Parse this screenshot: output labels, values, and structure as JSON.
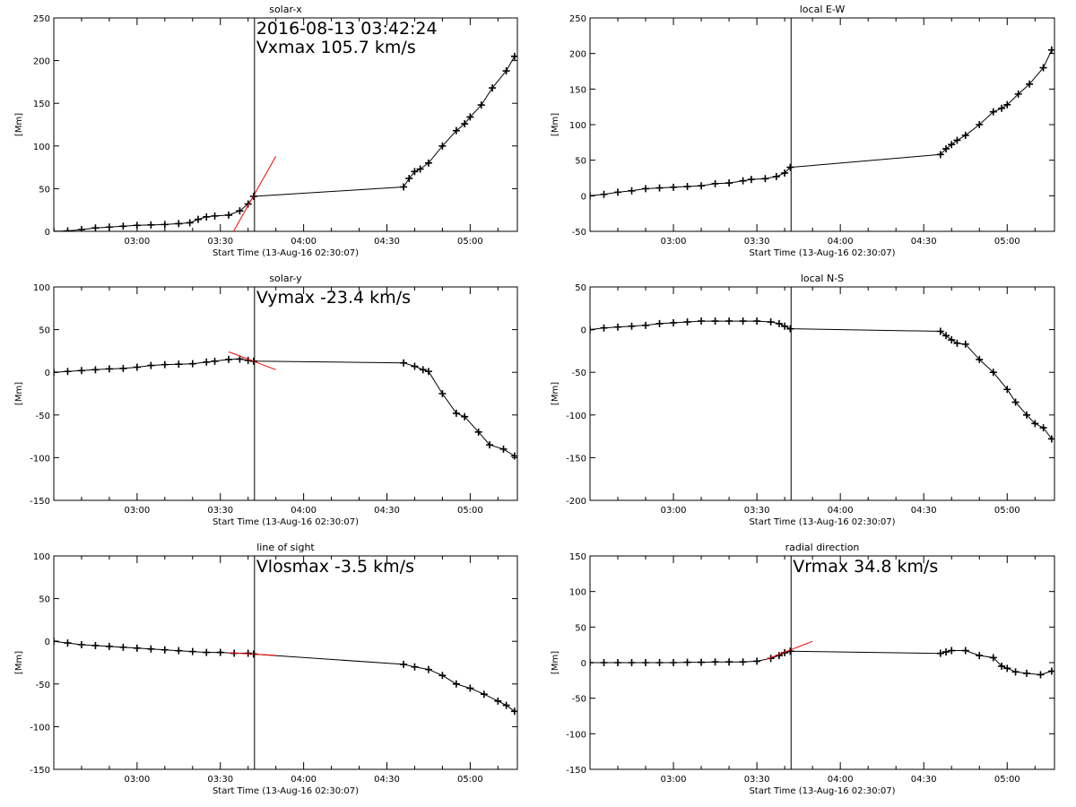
{
  "chart_data": [
    {
      "type": "scatter",
      "title": "solar-x",
      "xlabel": "Start Time (13-Aug-16 02:30:07)",
      "ylabel": "[Mm]",
      "xlim": [
        0,
        167
      ],
      "ylim": [
        0,
        250
      ],
      "yticks": [
        0,
        50,
        100,
        150,
        200,
        250
      ],
      "xticks": [
        {
          "v": 30,
          "label": "03:00"
        },
        {
          "v": 60,
          "label": "03:30"
        },
        {
          "v": 90,
          "label": "04:00"
        },
        {
          "v": 120,
          "label": "04:30"
        },
        {
          "v": 150,
          "label": "05:00"
        }
      ],
      "vline": 72.3,
      "annotation": [
        "2016-08-13 03:42:24",
        "Vxmax  105.7 km/s"
      ],
      "fit": {
        "x": [
          63,
          80
        ],
        "y": [
          -10,
          88
        ]
      },
      "series": [
        {
          "points": [
            [
              0,
              0
            ],
            [
              5,
              0.5
            ],
            [
              10,
              2
            ],
            [
              15,
              4
            ],
            [
              20,
              5
            ],
            [
              25,
              6
            ],
            [
              30,
              7
            ],
            [
              35,
              7.5
            ],
            [
              40,
              8
            ],
            [
              45,
              9
            ],
            [
              49,
              10
            ],
            [
              52,
              14
            ],
            [
              55,
              17
            ],
            [
              58,
              18
            ],
            [
              63,
              19
            ],
            [
              67,
              24
            ],
            [
              70,
              32
            ],
            [
              72,
              41
            ],
            [
              126,
              52
            ],
            [
              128,
              62
            ],
            [
              130,
              70
            ],
            [
              132,
              73
            ],
            [
              135,
              80
            ],
            [
              140,
              100
            ],
            [
              145,
              118
            ],
            [
              148,
              126
            ],
            [
              150,
              134
            ],
            [
              154,
              148
            ],
            [
              158,
              168
            ],
            [
              163,
              188
            ],
            [
              166,
              205
            ]
          ]
        }
      ]
    },
    {
      "type": "scatter",
      "title": "local E-W",
      "xlabel": "Start Time (13-Aug-16 02:30:07)",
      "ylabel": "[Mm]",
      "xlim": [
        0,
        167
      ],
      "ylim": [
        -50,
        250
      ],
      "yticks": [
        -50,
        0,
        50,
        100,
        150,
        200,
        250
      ],
      "xticks": [
        {
          "v": 30,
          "label": "03:00"
        },
        {
          "v": 60,
          "label": "03:30"
        },
        {
          "v": 90,
          "label": "04:00"
        },
        {
          "v": 120,
          "label": "04:30"
        },
        {
          "v": 150,
          "label": "05:00"
        }
      ],
      "vline": 72.3,
      "annotation": [],
      "series": [
        {
          "points": [
            [
              0,
              0
            ],
            [
              5,
              2
            ],
            [
              10,
              5
            ],
            [
              15,
              7
            ],
            [
              20,
              10
            ],
            [
              25,
              11
            ],
            [
              30,
              12
            ],
            [
              35,
              13
            ],
            [
              40,
              14
            ],
            [
              45,
              17
            ],
            [
              50,
              18
            ],
            [
              55,
              21
            ],
            [
              58,
              23
            ],
            [
              63,
              24
            ],
            [
              67,
              27
            ],
            [
              70,
              32
            ],
            [
              72,
              40
            ],
            [
              126,
              58
            ],
            [
              128,
              66
            ],
            [
              130,
              72
            ],
            [
              132,
              78
            ],
            [
              135,
              85
            ],
            [
              140,
              100
            ],
            [
              145,
              118
            ],
            [
              148,
              123
            ],
            [
              150,
              128
            ],
            [
              154,
              143
            ],
            [
              158,
              157
            ],
            [
              163,
              180
            ],
            [
              166,
              205
            ]
          ]
        }
      ]
    },
    {
      "type": "scatter",
      "title": "solar-y",
      "xlabel": "Start Time (13-Aug-16 02:30:07)",
      "ylabel": "[Mm]",
      "xlim": [
        0,
        167
      ],
      "ylim": [
        -150,
        100
      ],
      "yticks": [
        -150,
        -100,
        -50,
        0,
        50,
        100
      ],
      "xticks": [
        {
          "v": 30,
          "label": "03:00"
        },
        {
          "v": 60,
          "label": "03:30"
        },
        {
          "v": 90,
          "label": "04:00"
        },
        {
          "v": 120,
          "label": "04:30"
        },
        {
          "v": 150,
          "label": "05:00"
        }
      ],
      "vline": 72.3,
      "annotation": [
        "Vymax  -23.4 km/s"
      ],
      "fit": {
        "x": [
          63,
          80
        ],
        "y": [
          24,
          3
        ]
      },
      "series": [
        {
          "points": [
            [
              0,
              0
            ],
            [
              5,
              1
            ],
            [
              10,
              2
            ],
            [
              15,
              3
            ],
            [
              20,
              4
            ],
            [
              25,
              4.5
            ],
            [
              30,
              6
            ],
            [
              35,
              8
            ],
            [
              40,
              9
            ],
            [
              45,
              9.5
            ],
            [
              50,
              10
            ],
            [
              55,
              12
            ],
            [
              58,
              13
            ],
            [
              63,
              15
            ],
            [
              67,
              15.5
            ],
            [
              70,
              14
            ],
            [
              72,
              13
            ],
            [
              126,
              11
            ],
            [
              130,
              7
            ],
            [
              133,
              3
            ],
            [
              135,
              1
            ],
            [
              140,
              -25
            ],
            [
              145,
              -48
            ],
            [
              148,
              -52
            ],
            [
              153,
              -70
            ],
            [
              157,
              -85
            ],
            [
              162,
              -90
            ],
            [
              166,
              -98
            ]
          ]
        }
      ]
    },
    {
      "type": "scatter",
      "title": "local N-S",
      "xlabel": "Start Time (13-Aug-16 02:30:07)",
      "ylabel": "[Mm]",
      "xlim": [
        0,
        167
      ],
      "ylim": [
        -200,
        50
      ],
      "yticks": [
        -200,
        -150,
        -100,
        -50,
        0,
        50
      ],
      "xticks": [
        {
          "v": 30,
          "label": "03:00"
        },
        {
          "v": 60,
          "label": "03:30"
        },
        {
          "v": 90,
          "label": "04:00"
        },
        {
          "v": 120,
          "label": "04:30"
        },
        {
          "v": 150,
          "label": "05:00"
        }
      ],
      "vline": 72.3,
      "annotation": [],
      "series": [
        {
          "points": [
            [
              0,
              0
            ],
            [
              5,
              2
            ],
            [
              10,
              3
            ],
            [
              15,
              4
            ],
            [
              20,
              5
            ],
            [
              25,
              7
            ],
            [
              30,
              8
            ],
            [
              35,
              9
            ],
            [
              40,
              10
            ],
            [
              45,
              10
            ],
            [
              50,
              10
            ],
            [
              55,
              10
            ],
            [
              60,
              10
            ],
            [
              65,
              9
            ],
            [
              68,
              7
            ],
            [
              70,
              4
            ],
            [
              72,
              1
            ],
            [
              126,
              -2
            ],
            [
              128,
              -7
            ],
            [
              130,
              -12
            ],
            [
              132,
              -16
            ],
            [
              135,
              -17
            ],
            [
              140,
              -35
            ],
            [
              145,
              -50
            ],
            [
              150,
              -70
            ],
            [
              153,
              -85
            ],
            [
              157,
              -100
            ],
            [
              160,
              -110
            ],
            [
              163,
              -115
            ],
            [
              166,
              -128
            ]
          ]
        }
      ]
    },
    {
      "type": "scatter",
      "title": "line of sight",
      "xlabel": "Start Time (13-Aug-16 02:30:07)",
      "ylabel": "[Mm]",
      "xlim": [
        0,
        167
      ],
      "ylim": [
        -150,
        100
      ],
      "yticks": [
        -150,
        -100,
        -50,
        0,
        50,
        100
      ],
      "xticks": [
        {
          "v": 30,
          "label": "03:00"
        },
        {
          "v": 60,
          "label": "03:30"
        },
        {
          "v": 90,
          "label": "04:00"
        },
        {
          "v": 120,
          "label": "04:30"
        },
        {
          "v": 150,
          "label": "05:00"
        }
      ],
      "vline": 72.3,
      "annotation": [
        "Vlosmax   -3.5 km/s"
      ],
      "fit": {
        "x": [
          63,
          80
        ],
        "y": [
          -13.5,
          -16.5
        ]
      },
      "series": [
        {
          "points": [
            [
              0,
              0
            ],
            [
              5,
              -2
            ],
            [
              10,
              -4
            ],
            [
              15,
              -5
            ],
            [
              20,
              -6
            ],
            [
              25,
              -7
            ],
            [
              30,
              -8
            ],
            [
              35,
              -9
            ],
            [
              40,
              -10
            ],
            [
              45,
              -11
            ],
            [
              50,
              -12
            ],
            [
              55,
              -13
            ],
            [
              60,
              -13
            ],
            [
              65,
              -14
            ],
            [
              70,
              -14
            ],
            [
              72,
              -15
            ],
            [
              126,
              -27
            ],
            [
              130,
              -30
            ],
            [
              135,
              -33
            ],
            [
              140,
              -40
            ],
            [
              145,
              -50
            ],
            [
              150,
              -55
            ],
            [
              155,
              -62
            ],
            [
              160,
              -70
            ],
            [
              163,
              -75
            ],
            [
              166,
              -82
            ]
          ]
        }
      ]
    },
    {
      "type": "scatter",
      "title": "radial direction",
      "xlabel": "Start Time (13-Aug-16 02:30:07)",
      "ylabel": "[Mm]",
      "xlim": [
        0,
        167
      ],
      "ylim": [
        -150,
        150
      ],
      "yticks": [
        -150,
        -100,
        -50,
        0,
        50,
        100,
        150
      ],
      "xticks": [
        {
          "v": 30,
          "label": "03:00"
        },
        {
          "v": 60,
          "label": "03:30"
        },
        {
          "v": 90,
          "label": "04:00"
        },
        {
          "v": 120,
          "label": "04:30"
        },
        {
          "v": 150,
          "label": "05:00"
        }
      ],
      "vline": 72.3,
      "annotation": [
        "Vrmax   34.8 km/s"
      ],
      "fit": {
        "x": [
          63,
          80
        ],
        "y": [
          4,
          30
        ]
      },
      "series": [
        {
          "points": [
            [
              0,
              0
            ],
            [
              5,
              0
            ],
            [
              10,
              0
            ],
            [
              15,
              0
            ],
            [
              20,
              0
            ],
            [
              25,
              0
            ],
            [
              30,
              0
            ],
            [
              35,
              0.5
            ],
            [
              40,
              0.5
            ],
            [
              45,
              1
            ],
            [
              50,
              1
            ],
            [
              55,
              1
            ],
            [
              60,
              2
            ],
            [
              65,
              6
            ],
            [
              68,
              10
            ],
            [
              70,
              14
            ],
            [
              72,
              16
            ],
            [
              126,
              13
            ],
            [
              128,
              15
            ],
            [
              130,
              17
            ],
            [
              135,
              17
            ],
            [
              140,
              10
            ],
            [
              145,
              7
            ],
            [
              148,
              -5
            ],
            [
              150,
              -8
            ],
            [
              153,
              -13
            ],
            [
              157,
              -15
            ],
            [
              162,
              -17
            ],
            [
              166,
              -12
            ]
          ]
        }
      ]
    }
  ]
}
